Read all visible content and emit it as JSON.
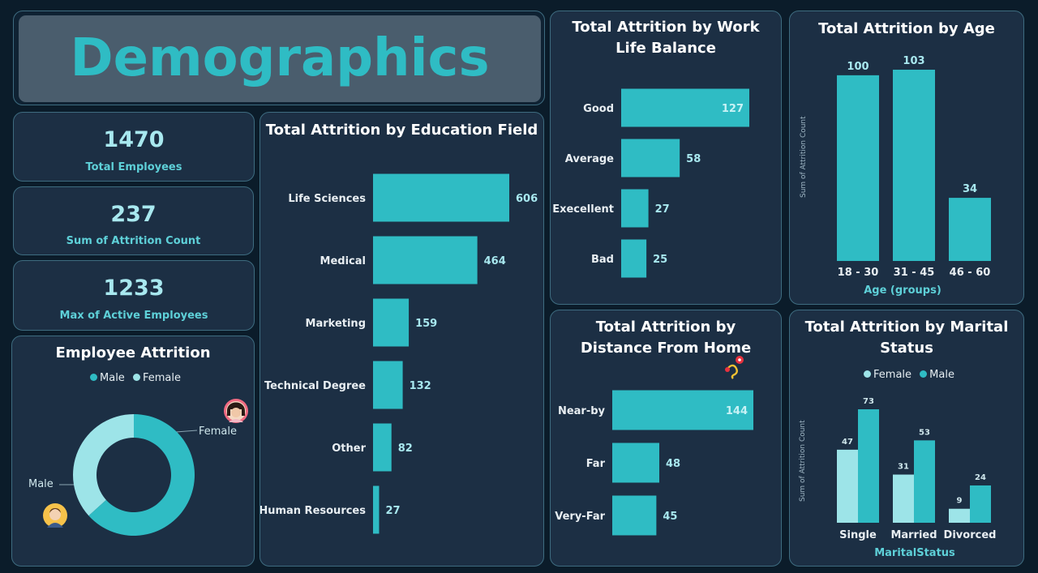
{
  "banner": {
    "title": "Demographics"
  },
  "kpis": [
    {
      "value": "1470",
      "label": "Total Employees"
    },
    {
      "value": "237",
      "label": "Sum of Attrition Count"
    },
    {
      "value": "1233",
      "label": "Max of Active Employees"
    }
  ],
  "colors": {
    "male": "#2fbcc4",
    "female": "#9de4e8",
    "panel": "#1c2f44",
    "border": "#3e6c80",
    "background": "#0b1c2a",
    "title_teal": "#2fbcc4"
  },
  "chart_data": [
    {
      "id": "education",
      "type": "bar",
      "orientation": "horizontal",
      "title": "Total Attrition by Education Field",
      "categories": [
        "Life Sciences",
        "Medical",
        "Marketing",
        "Technical Degree",
        "Other",
        "Human Resources"
      ],
      "values": [
        606,
        464,
        159,
        132,
        82,
        27
      ]
    },
    {
      "id": "worklife",
      "type": "bar",
      "orientation": "horizontal",
      "title": "Total Attrition by Work Life Balance",
      "categories": [
        "Good",
        "Average",
        "Execellent",
        "Bad"
      ],
      "values": [
        127,
        58,
        27,
        25
      ]
    },
    {
      "id": "age",
      "type": "bar",
      "orientation": "vertical",
      "title": "Total Attrition by Age",
      "categories": [
        "18 - 30",
        "31 - 45",
        "46 - 60"
      ],
      "values": [
        100,
        103,
        34
      ],
      "xlabel": "Age (groups)",
      "ylabel": "Sum of Attrition Count"
    },
    {
      "id": "distance",
      "type": "bar",
      "orientation": "horizontal",
      "title": "Total Attrition by Distance From Home",
      "categories": [
        "Near-by",
        "Far",
        "Very-Far"
      ],
      "values": [
        144,
        48,
        45
      ]
    },
    {
      "id": "marital",
      "type": "bar",
      "orientation": "vertical",
      "title": "Total Attrition by Marital Status",
      "categories": [
        "Single",
        "Married",
        "Divorced"
      ],
      "series": [
        {
          "name": "Female",
          "values": [
            47,
            31,
            9
          ]
        },
        {
          "name": "Male",
          "values": [
            73,
            53,
            24
          ]
        }
      ],
      "xlabel": "MaritalStatus",
      "ylabel": "Sum of Attrition Count",
      "legend": "top-center"
    },
    {
      "id": "attrition",
      "type": "pie",
      "style": "donut",
      "title": "Employee Attrition",
      "labels": [
        "Male",
        "Female"
      ],
      "values": [
        150,
        87
      ],
      "legend": "top-center"
    }
  ]
}
